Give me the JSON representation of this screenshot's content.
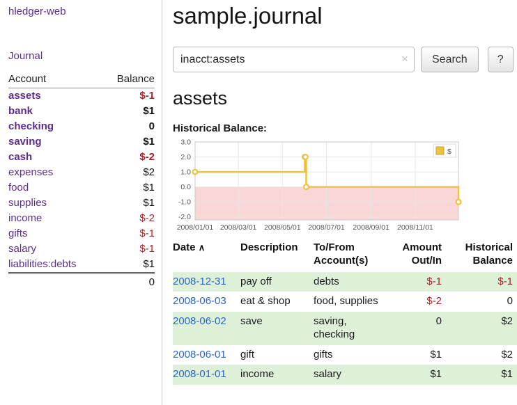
{
  "sidebar": {
    "brand": "hledger-web",
    "journal_link": "Journal",
    "accounts_header": {
      "account": "Account",
      "balance": "Balance"
    },
    "accounts": [
      {
        "name": "assets",
        "balance": "$-1",
        "level": 1,
        "bold": true,
        "neg_name": true,
        "neg_bal": true
      },
      {
        "name": "bank",
        "balance": "$1",
        "level": 2,
        "bold": true,
        "neg_name": false,
        "neg_bal": false
      },
      {
        "name": "checking",
        "balance": "0",
        "level": 3,
        "bold": true,
        "neg_name": false,
        "neg_bal": false
      },
      {
        "name": "saving",
        "balance": "$1",
        "level": 3,
        "bold": true,
        "neg_name": false,
        "neg_bal": false
      },
      {
        "name": "cash",
        "balance": "$-2",
        "level": 2,
        "bold": true,
        "neg_name": true,
        "neg_bal": true
      },
      {
        "name": "expenses",
        "balance": "$2",
        "level": 1,
        "bold": false,
        "neg_name": false,
        "neg_bal": false
      },
      {
        "name": "food",
        "balance": "$1",
        "level": 2,
        "bold": false,
        "neg_name": false,
        "neg_bal": false
      },
      {
        "name": "supplies",
        "balance": "$1",
        "level": 2,
        "bold": false,
        "neg_name": false,
        "neg_bal": false
      },
      {
        "name": "income",
        "balance": "$-2",
        "level": 1,
        "bold": false,
        "neg_name": true,
        "neg_bal": true
      },
      {
        "name": "gifts",
        "balance": "$-1",
        "level": 2,
        "bold": false,
        "neg_name": true,
        "neg_bal": true
      },
      {
        "name": "salary",
        "balance": "$-1",
        "level": 2,
        "bold": false,
        "neg_name": true,
        "neg_bal": true
      },
      {
        "name": "liabilities:debts",
        "balance": "$1",
        "level": 1,
        "bold": false,
        "neg_name": false,
        "neg_bal": false
      }
    ],
    "accounts_total": "0"
  },
  "main": {
    "title": "sample.journal",
    "search": {
      "value": "inacct:assets",
      "clear_icon": "×",
      "button": "Search",
      "help_button": "?"
    },
    "account_heading": "assets",
    "chart_label": "Historical Balance:"
  },
  "chart_data": {
    "type": "line",
    "step": true,
    "title": "Historical Balance",
    "series": [
      {
        "name": "$",
        "color": "#edc240",
        "points": [
          [
            "2008-01-01",
            1
          ],
          [
            "2008-06-01",
            2
          ],
          [
            "2008-06-02",
            2
          ],
          [
            "2008-06-03",
            0
          ],
          [
            "2008-12-31",
            -1
          ]
        ]
      }
    ],
    "xlim": [
      "2008-01-01",
      "2008-12-31"
    ],
    "ylim": [
      -2.2,
      3.0
    ],
    "y_ticks": [
      3.0,
      2.0,
      1.0,
      0.0,
      -1.0,
      -2.0
    ],
    "x_ticks": [
      {
        "label": "2008/01/01",
        "date": "2008-01-01"
      },
      {
        "label": "2008/03/01",
        "date": "2008-03-01"
      },
      {
        "label": "2008/05/01",
        "date": "2008-05-01"
      },
      {
        "label": "2008/07/01",
        "date": "2008-07-01"
      },
      {
        "label": "2008/09/01",
        "date": "2008-09-01"
      },
      {
        "label": "2008/11/01",
        "date": "2008-11-01"
      }
    ],
    "negative_fill": "#f9d7d7",
    "grid": true,
    "legend_position": "top-right"
  },
  "register": {
    "headers": {
      "date": "Date",
      "sort_icon": "∧",
      "description": "Description",
      "accounts_line1": "To/From",
      "accounts_line2": "Account(s)",
      "amount_line1": "Amount",
      "amount_line2": "Out/In",
      "balance_line1": "Historical",
      "balance_line2": "Balance"
    },
    "rows": [
      {
        "date": "2008-12-31",
        "description": "pay off",
        "accounts": "debts",
        "amount": "$-1",
        "neg_amount": true,
        "balance": "$-1",
        "neg_balance": true,
        "shaded": true
      },
      {
        "date": "2008-06-03",
        "description": "eat & shop",
        "accounts": "food, supplies",
        "amount": "$-2",
        "neg_amount": true,
        "balance": "0",
        "neg_balance": false,
        "shaded": false
      },
      {
        "date": "2008-06-02",
        "description": "save",
        "accounts": "saving,\nchecking",
        "amount": "0",
        "neg_amount": false,
        "balance": "$2",
        "neg_balance": false,
        "shaded": true
      },
      {
        "date": "2008-06-01",
        "description": "gift",
        "accounts": "gifts",
        "amount": "$1",
        "neg_amount": false,
        "balance": "$2",
        "neg_balance": false,
        "shaded": false
      },
      {
        "date": "2008-01-01",
        "description": "income",
        "accounts": "salary",
        "amount": "$1",
        "neg_amount": false,
        "balance": "$1",
        "neg_balance": false,
        "shaded": true
      }
    ]
  },
  "colors": {
    "link_purple": "#5c2d91",
    "link_blue": "#2a66c8",
    "negative_red": "#a3242a",
    "row_green": "#dff0d8",
    "chart_line": "#edc240"
  }
}
